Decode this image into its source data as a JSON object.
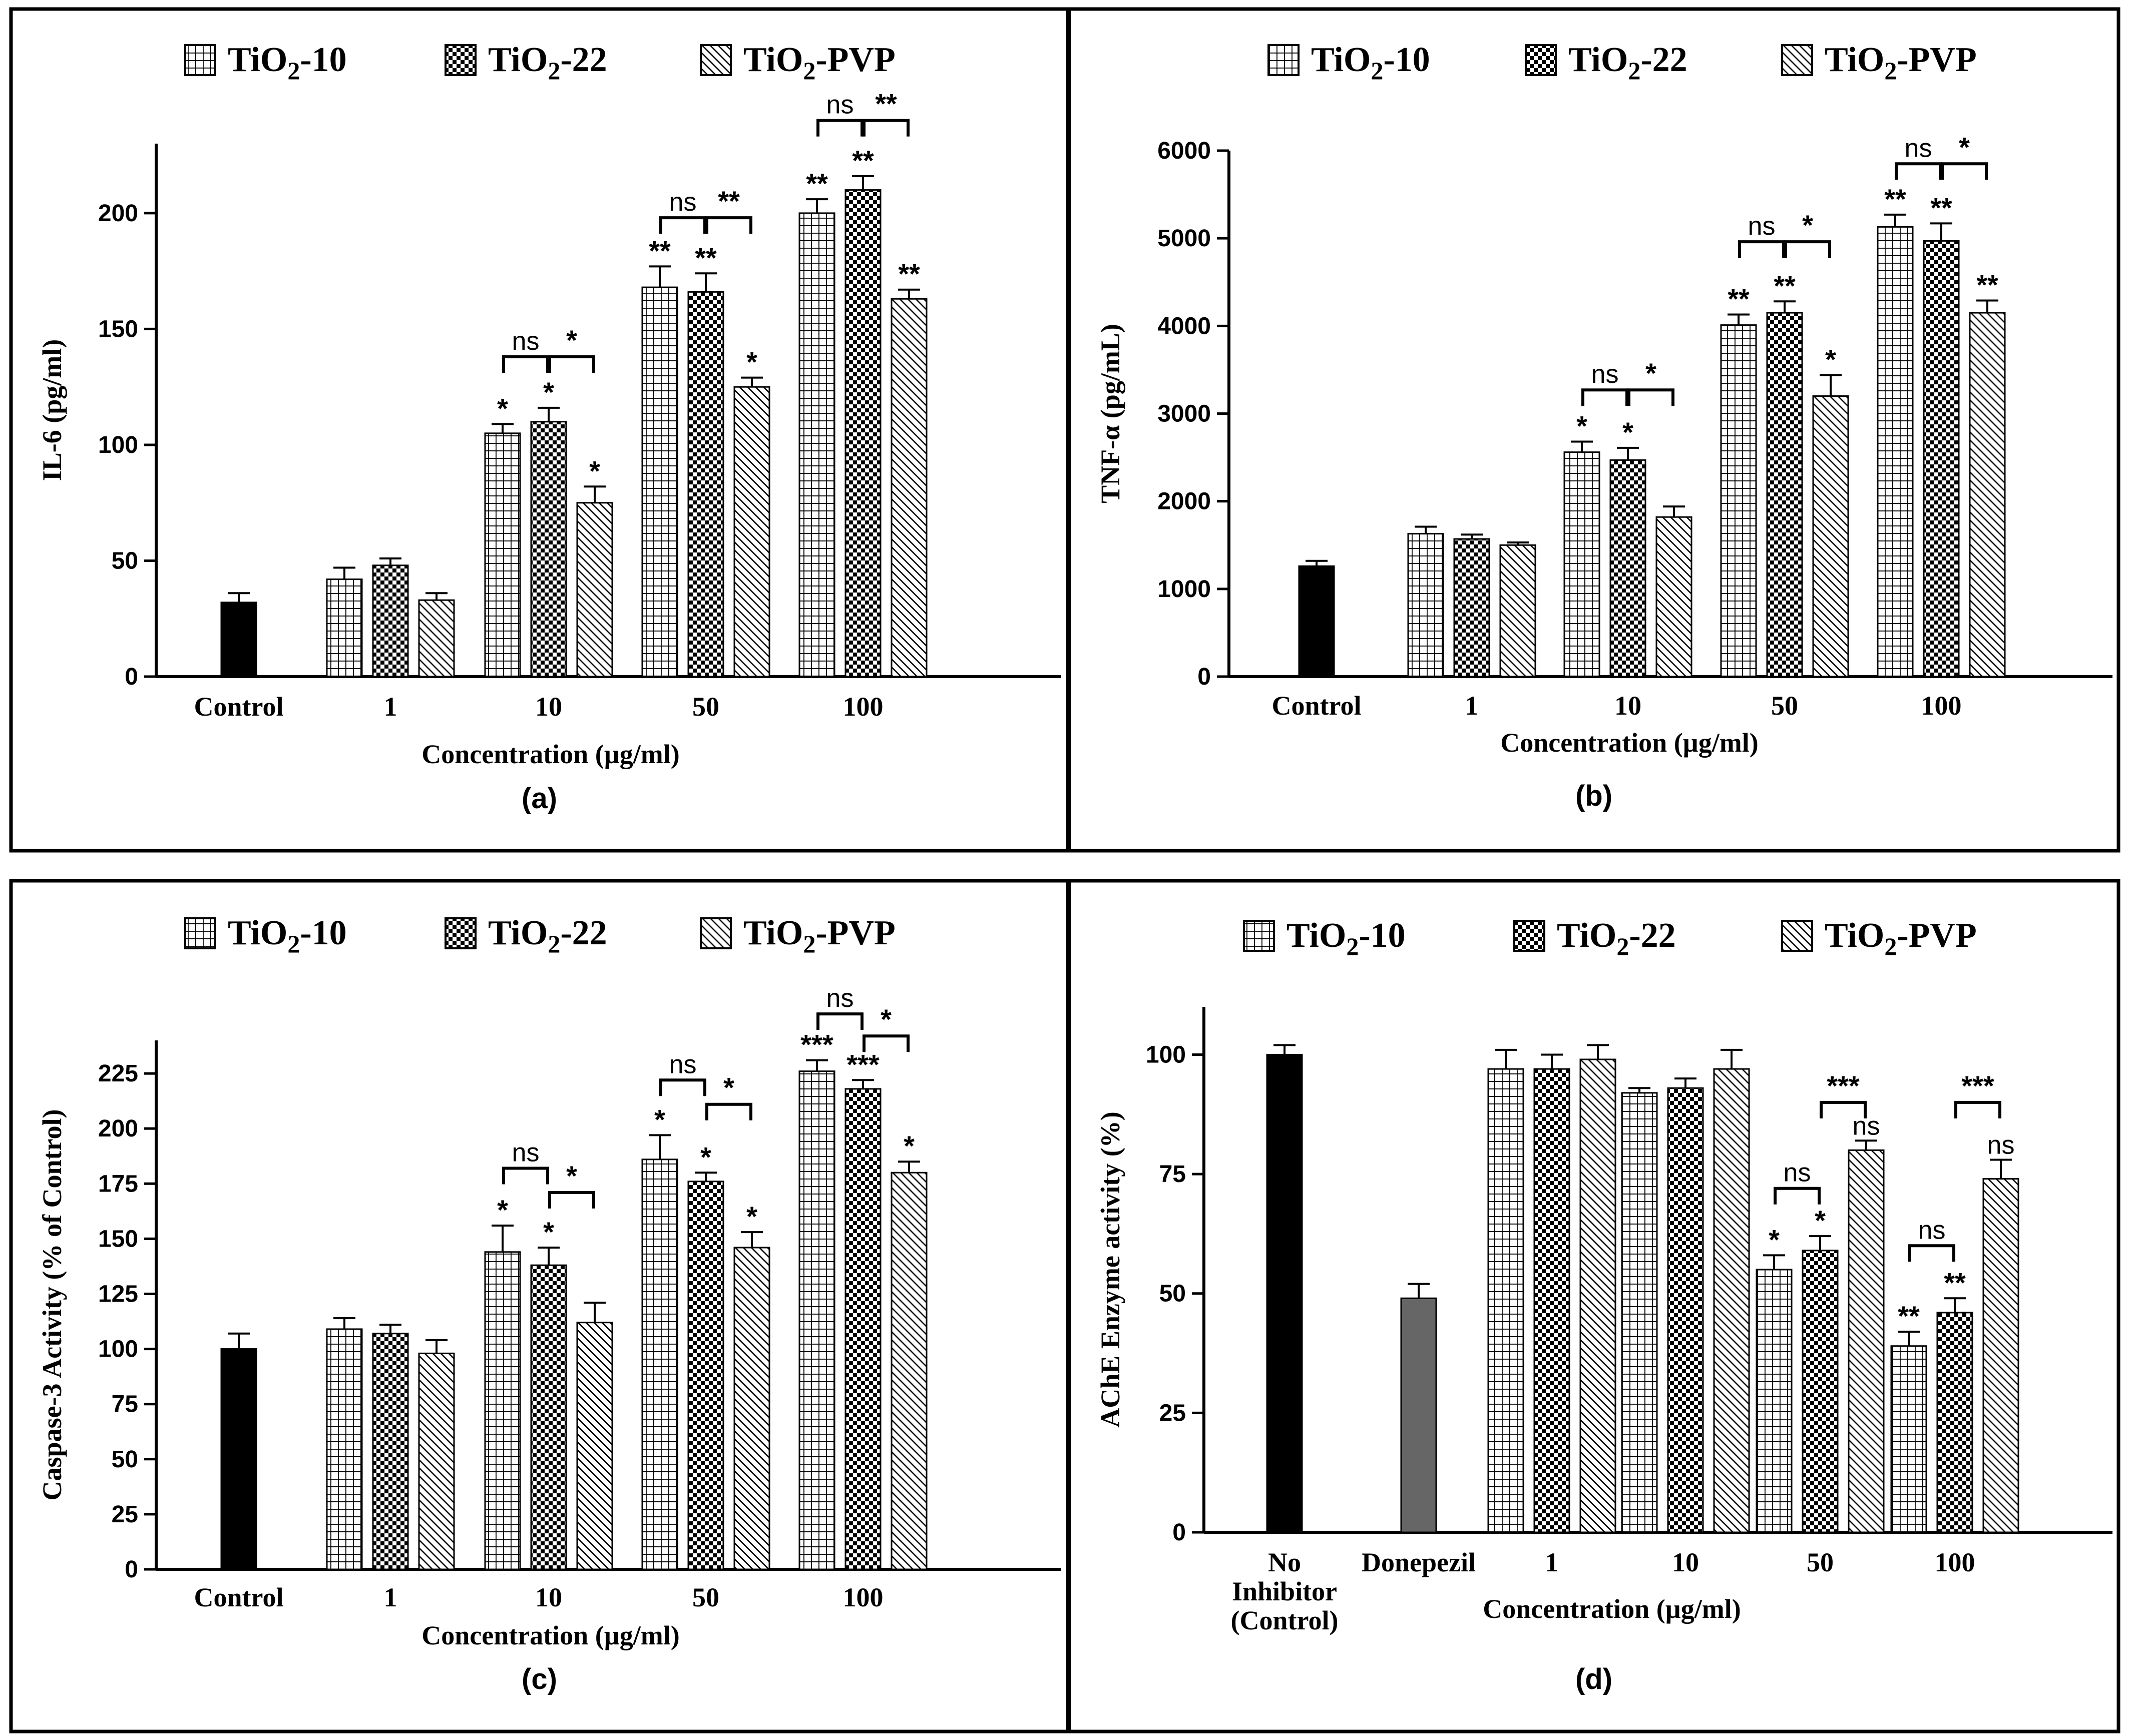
{
  "legend": {
    "items": [
      {
        "base": "TiO",
        "sub": "2",
        "tail": "-10",
        "pattern": "grid"
      },
      {
        "base": "TiO",
        "sub": "2",
        "tail": "-22",
        "pattern": "checker"
      },
      {
        "base": "TiO",
        "sub": "2",
        "tail": "-PVP",
        "pattern": "diag"
      }
    ]
  },
  "chart_data": [
    {
      "type": "bar",
      "panel_label": "(a)",
      "ylabel": "IL-6 (pg/ml)",
      "xlabel": "Concentration (µg/ml)",
      "ylim": [
        0,
        230
      ],
      "yticks": [
        0,
        50,
        100,
        150,
        200
      ],
      "control": {
        "label": "Control",
        "value": 32,
        "err": 4,
        "color": "#000000"
      },
      "categories": [
        "1",
        "10",
        "50",
        "100"
      ],
      "series": [
        {
          "name": "TiO2-10",
          "values": [
            42,
            105,
            168,
            200
          ],
          "errors": [
            5,
            4,
            9,
            6
          ],
          "sig": [
            "",
            "*",
            "**",
            "**"
          ]
        },
        {
          "name": "TiO2-22",
          "values": [
            48,
            110,
            166,
            210
          ],
          "errors": [
            3,
            6,
            8,
            6
          ],
          "sig": [
            "",
            "*",
            "**",
            "**"
          ]
        },
        {
          "name": "TiO2-PVP",
          "values": [
            33,
            75,
            125,
            163
          ],
          "errors": [
            3,
            7,
            4,
            4
          ],
          "sig": [
            "",
            "*",
            "*",
            "**"
          ]
        }
      ],
      "brackets": [
        {
          "cat": 1,
          "from": 0,
          "to": 1,
          "label": "ns",
          "y": 138
        },
        {
          "cat": 1,
          "from": 1,
          "to": 2,
          "label": "*",
          "y": 138
        },
        {
          "cat": 2,
          "from": 0,
          "to": 1,
          "label": "ns",
          "y": 198
        },
        {
          "cat": 2,
          "from": 1,
          "to": 2,
          "label": "**",
          "y": 198
        },
        {
          "cat": 3,
          "from": 0,
          "to": 1,
          "label": "ns",
          "y": 240
        },
        {
          "cat": 3,
          "from": 1,
          "to": 2,
          "label": "**",
          "y": 240
        }
      ]
    },
    {
      "type": "bar",
      "panel_label": "(b)",
      "ylabel": "TNF-α (pg/mL)",
      "xlabel": "Concentration (µg/ml)",
      "ylim": [
        0,
        6000
      ],
      "yticks": [
        0,
        1000,
        2000,
        3000,
        4000,
        5000,
        6000
      ],
      "control": {
        "label": "Control",
        "value": 1260,
        "err": 60,
        "color": "#000000"
      },
      "categories": [
        "1",
        "10",
        "50",
        "100"
      ],
      "series": [
        {
          "name": "TiO2-10",
          "values": [
            1630,
            2560,
            4010,
            5130
          ],
          "errors": [
            80,
            120,
            120,
            140
          ],
          "sig": [
            "",
            "*",
            "**",
            "**"
          ]
        },
        {
          "name": "TiO2-22",
          "values": [
            1570,
            2470,
            4150,
            4970
          ],
          "errors": [
            50,
            140,
            130,
            200
          ],
          "sig": [
            "",
            "*",
            "**",
            "**"
          ]
        },
        {
          "name": "TiO2-PVP",
          "values": [
            1500,
            1820,
            3200,
            4150
          ],
          "errors": [
            30,
            120,
            240,
            140
          ],
          "sig": [
            "",
            "",
            "*",
            "**"
          ]
        }
      ],
      "brackets": [
        {
          "cat": 1,
          "from": 0,
          "to": 1,
          "label": "ns",
          "y": 3270
        },
        {
          "cat": 1,
          "from": 1,
          "to": 2,
          "label": "*",
          "y": 3270
        },
        {
          "cat": 2,
          "from": 0,
          "to": 1,
          "label": "ns",
          "y": 4960
        },
        {
          "cat": 2,
          "from": 1,
          "to": 2,
          "label": "*",
          "y": 4960
        },
        {
          "cat": 3,
          "from": 0,
          "to": 1,
          "label": "ns",
          "y": 5850
        },
        {
          "cat": 3,
          "from": 1,
          "to": 2,
          "label": "*",
          "y": 5850
        }
      ]
    },
    {
      "type": "bar",
      "panel_label": "(c)",
      "ylabel": "Caspase-3 Activity (% of Control)",
      "xlabel": "Concentration (µg/ml)",
      "ylim": [
        0,
        240
      ],
      "yticks": [
        0,
        25,
        50,
        75,
        100,
        125,
        150,
        175,
        200,
        225
      ],
      "control": {
        "label": "Control",
        "value": 100,
        "err": 7,
        "color": "#000000"
      },
      "categories": [
        "1",
        "10",
        "50",
        "100"
      ],
      "series": [
        {
          "name": "TiO2-10",
          "values": [
            109,
            144,
            186,
            226
          ],
          "errors": [
            5,
            12,
            11,
            5
          ],
          "sig": [
            "",
            "*",
            "*",
            "***"
          ]
        },
        {
          "name": "TiO2-22",
          "values": [
            107,
            138,
            176,
            218
          ],
          "errors": [
            4,
            8,
            4,
            4
          ],
          "sig": [
            "",
            "*",
            "*",
            "***"
          ]
        },
        {
          "name": "TiO2-PVP",
          "values": [
            98,
            112,
            146,
            180
          ],
          "errors": [
            6,
            9,
            7,
            5
          ],
          "sig": [
            "",
            "",
            "*",
            "*"
          ]
        }
      ],
      "brackets": [
        {
          "cat": 1,
          "from": 0,
          "to": 1,
          "label": "ns",
          "y": 182
        },
        {
          "cat": 1,
          "from": 1,
          "to": 2,
          "label": "*",
          "y": 171
        },
        {
          "cat": 2,
          "from": 0,
          "to": 1,
          "label": "ns",
          "y": 222
        },
        {
          "cat": 2,
          "from": 1,
          "to": 2,
          "label": "*",
          "y": 211
        },
        {
          "cat": 3,
          "from": 0,
          "to": 1,
          "label": "ns",
          "y": 252
        },
        {
          "cat": 3,
          "from": 1,
          "to": 2,
          "label": "*",
          "y": 242
        }
      ]
    },
    {
      "type": "bar",
      "panel_label": "(d)",
      "ylabel": "AChE Enzyme activity (%)",
      "xlabel": "Concentration (µg/ml)",
      "ylim": [
        0,
        110
      ],
      "yticks": [
        0,
        25,
        50,
        75,
        100
      ],
      "control": {
        "label": [
          "No",
          "Inhibitor",
          "(Control)"
        ],
        "value": 100,
        "err": 2,
        "color": "#000000"
      },
      "reference": {
        "label": "Donepezil",
        "value": 49,
        "err": 3,
        "color": "#666666"
      },
      "categories": [
        "1",
        "10",
        "50",
        "100"
      ],
      "series": [
        {
          "name": "TiO2-10",
          "values": [
            97,
            92,
            55,
            39
          ],
          "errors": [
            4,
            1,
            3,
            3
          ],
          "sig": [
            "",
            "",
            "*",
            "**"
          ]
        },
        {
          "name": "TiO2-22",
          "values": [
            97,
            93,
            59,
            46
          ],
          "errors": [
            3,
            2,
            3,
            3
          ],
          "sig": [
            "",
            "",
            "*",
            "**"
          ]
        },
        {
          "name": "TiO2-PVP",
          "values": [
            99,
            97,
            80,
            74
          ],
          "errors": [
            3,
            4,
            2,
            4
          ],
          "sig": [
            "",
            "",
            "ns",
            "ns"
          ]
        }
      ],
      "brackets": [
        {
          "cat": 2,
          "from": 0,
          "to": 1,
          "label": "ns",
          "y": 72
        },
        {
          "cat": 2,
          "from": 1,
          "to": 2,
          "label": "***",
          "y": 90
        },
        {
          "cat": 3,
          "from": 0,
          "to": 1,
          "label": "ns",
          "y": 60
        },
        {
          "cat": 3,
          "from": 1,
          "to": 2,
          "label": "***",
          "y": 90
        }
      ]
    }
  ]
}
